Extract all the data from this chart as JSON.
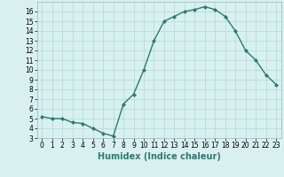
{
  "x": [
    0,
    1,
    2,
    3,
    4,
    5,
    6,
    7,
    8,
    9,
    10,
    11,
    12,
    13,
    14,
    15,
    16,
    17,
    18,
    19,
    20,
    21,
    22,
    23
  ],
  "y": [
    5.2,
    5.0,
    5.0,
    4.6,
    4.5,
    4.0,
    3.5,
    3.2,
    6.5,
    7.5,
    10.0,
    13.0,
    15.0,
    15.5,
    16.0,
    16.2,
    16.5,
    16.2,
    15.5,
    14.0,
    12.0,
    11.0,
    9.5,
    8.5
  ],
  "line_color": "#2d7a6e",
  "marker": "D",
  "marker_size": 2,
  "bg_color": "#d8f0f0",
  "grid_color": "#b0d8d8",
  "xlabel": "Humidex (Indice chaleur)",
  "xlabel_fontsize": 7,
  "ylim": [
    3,
    17
  ],
  "xlim": [
    -0.5,
    23.5
  ],
  "yticks": [
    3,
    4,
    5,
    6,
    7,
    8,
    9,
    10,
    11,
    12,
    13,
    14,
    15,
    16
  ],
  "xticks": [
    0,
    1,
    2,
    3,
    4,
    5,
    6,
    7,
    8,
    9,
    10,
    11,
    12,
    13,
    14,
    15,
    16,
    17,
    18,
    19,
    20,
    21,
    22,
    23
  ],
  "tick_fontsize": 5.5,
  "line_width": 1.0
}
